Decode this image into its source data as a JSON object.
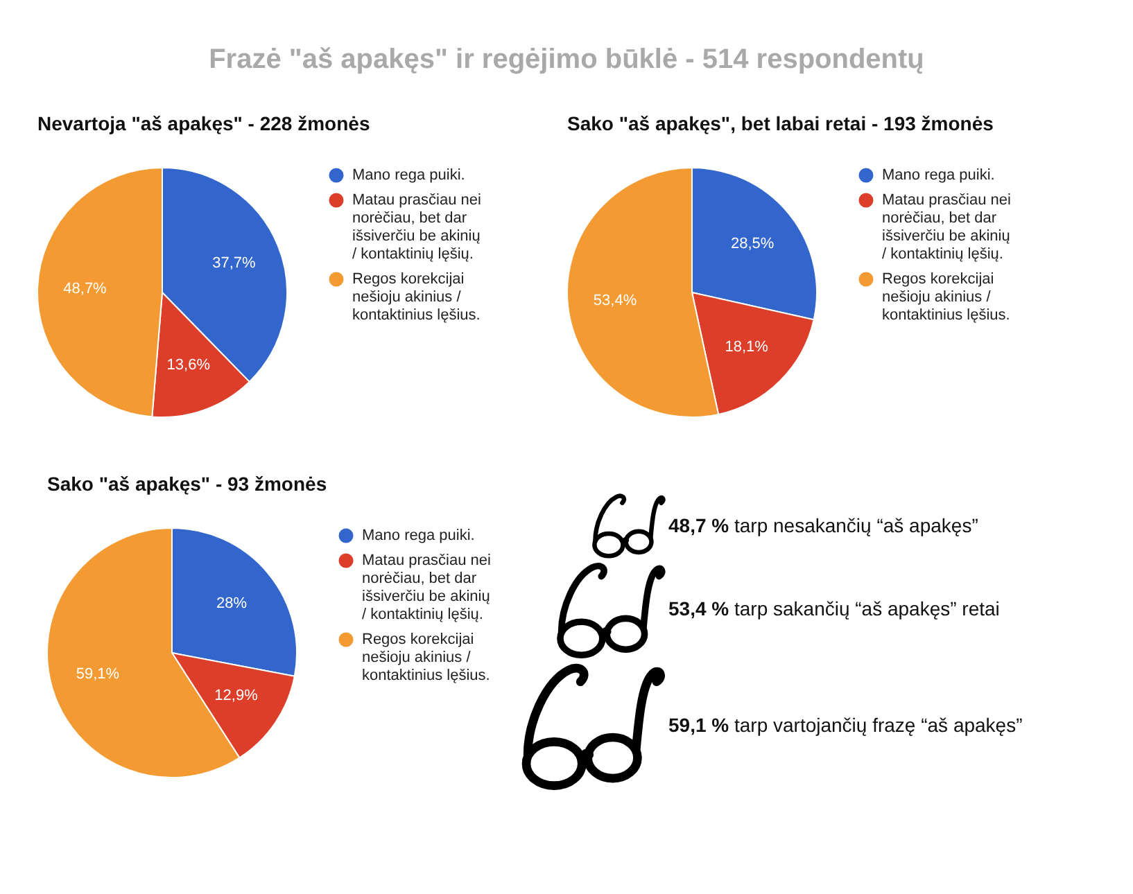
{
  "chart_data": [
    {
      "type": "other",
      "title": "Frazė \"aš apakęs\" ir regėjimo būklė - 514 respondentų"
    },
    {
      "type": "pie",
      "title": "Nevartoja \"aš apakęs\" - 228 žmonės",
      "categories": [
        "Mano rega puiki.",
        "Matau prasčiau nei norėčiau, bet dar išsiverčiu be akinių / kontaktinių lęšių.",
        "Regos korekcijai nešioju akinius / kontaktinius lęšius."
      ],
      "values": [
        37.7,
        13.6,
        48.7
      ],
      "colors": [
        "#3366cc",
        "#dc3e2a",
        "#f39a32"
      ],
      "value_labels": [
        "37,7%",
        "13,6%",
        "48,7%"
      ],
      "legend": "right"
    },
    {
      "type": "pie",
      "title": "Sako \"aš apakęs\", bet labai retai - 193 žmonės",
      "categories": [
        "Mano rega puiki.",
        "Matau prasčiau nei norėčiau, bet dar išsiverčiu be akinių / kontaktinių lęšių.",
        "Regos korekcijai nešioju akinius / kontaktinius lęšius."
      ],
      "values": [
        28.5,
        18.1,
        53.4
      ],
      "colors": [
        "#3366cc",
        "#dc3e2a",
        "#f39a32"
      ],
      "value_labels": [
        "28,5%",
        "18,1%",
        "53,4%"
      ],
      "legend": "right"
    },
    {
      "type": "pie",
      "title": "Sako \"aš apakęs\" - 93 žmonės",
      "categories": [
        "Mano rega puiki.",
        "Matau prasčiau nei norėčiau, bet dar išsiverčiu be akinių / kontaktinių lęšių.",
        "Regos korekcijai nešioju akinius / kontaktinius lęšius."
      ],
      "values": [
        28,
        12.9,
        59.1
      ],
      "colors": [
        "#3366cc",
        "#dc3e2a",
        "#f39a32"
      ],
      "value_labels": [
        "28%",
        "12,9%",
        "59,1%"
      ],
      "legend": "right"
    },
    {
      "type": "other",
      "annotations": [
        "48,7 % tarp nesakančių “aš apakęs”",
        "53,4 % tarp sakančių “aš apakęs” retai",
        "59,1 % tarp vartojančių frazę “aš apakęs”"
      ]
    }
  ]
}
